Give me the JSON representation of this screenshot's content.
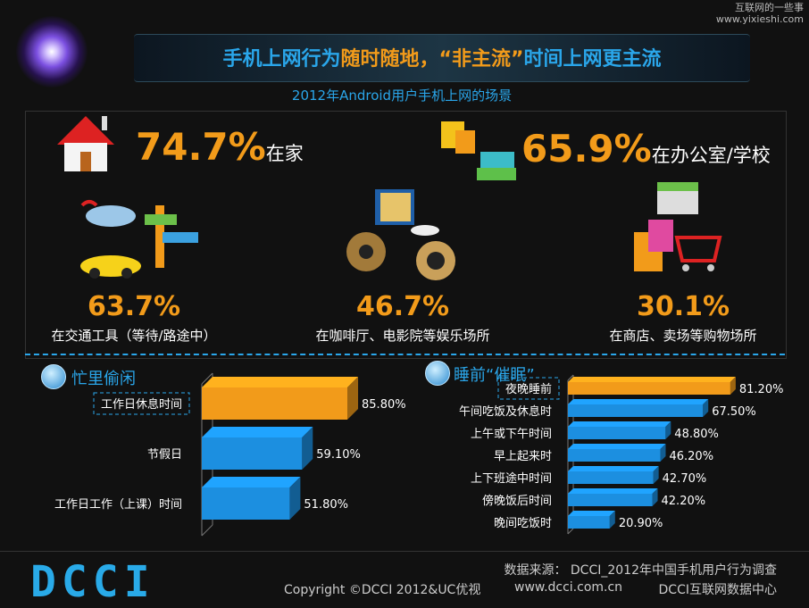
{
  "watermark": {
    "line1": "互联网的一些事",
    "line2": "www.yixieshi.com"
  },
  "header": {
    "title_part1": "手机上网行为",
    "title_part2": "随时随地，",
    "title_part3": "“非主流”",
    "title_part4": "时间上网更主流",
    "subtitle": "2012年Android用户手机上网的场景"
  },
  "scenes": [
    {
      "value": "74.7%",
      "label": "在家",
      "icon": "house-icon"
    },
    {
      "value": "65.9%",
      "label": "在办公室/学校",
      "icon": "office-buildings-icon"
    },
    {
      "value": "63.7%",
      "label": "在交通工具（等待/路途中）",
      "icon": "transport-icon"
    },
    {
      "value": "46.7%",
      "label": "在咖啡厅、电影院等娱乐场所",
      "icon": "cafe-cinema-icon"
    },
    {
      "value": "30.1%",
      "label": "在商店、卖场等购物场所",
      "icon": "shopping-cart-icon"
    }
  ],
  "chart_data": [
    {
      "type": "bar",
      "title": "忙里偷闲",
      "orientation": "horizontal",
      "categories": [
        "工作日休息时间",
        "节假日",
        "工作日工作（上课）时间"
      ],
      "values": [
        85.8,
        59.1,
        51.8
      ],
      "value_labels": [
        "85.80%",
        "59.10%",
        "51.80%"
      ],
      "highlight_index": 0,
      "colors": {
        "highlight": "#f29b1a",
        "normal": "#1c8fe0"
      }
    },
    {
      "type": "bar",
      "title": "睡前“催眠”",
      "orientation": "horizontal",
      "categories": [
        "夜晚睡前",
        "午间吃饭及休息时",
        "上午或下午时间",
        "早上起来时",
        "上下班途中时间",
        "傍晚饭后时间",
        "晚间吃饭时"
      ],
      "values": [
        81.2,
        67.5,
        48.8,
        46.2,
        42.7,
        42.2,
        20.9
      ],
      "value_labels": [
        "81.20%",
        "67.50%",
        "48.80%",
        "46.20%",
        "42.70%",
        "42.20%",
        "20.90%"
      ],
      "highlight_index": 0,
      "colors": {
        "highlight": "#f29b1a",
        "normal": "#1c8fe0"
      }
    }
  ],
  "footer": {
    "logo": "DCCI",
    "source": "数据来源： DCCI_2012年中国手机用户行为调查",
    "copyright": "Copyright ©DCCI 2012&UC优视",
    "site": "www.dcci.com.cn",
    "org": "DCCI互联网数据中心"
  }
}
